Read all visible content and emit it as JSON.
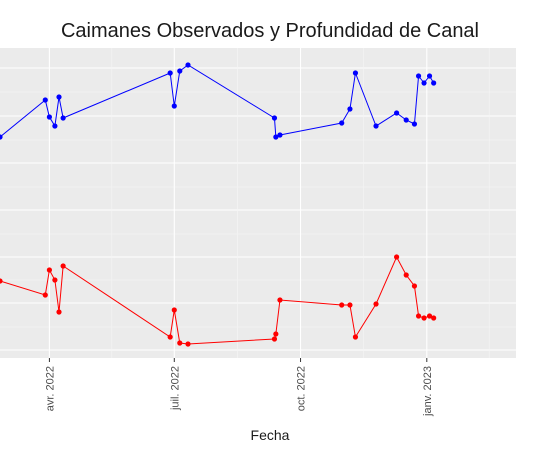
{
  "chart_data": {
    "type": "line",
    "title": "Caimanes Observados y Profundidad de Canal",
    "xlabel": "Fecha",
    "ylabel": "",
    "x_type": "date",
    "xlim": [
      "2022-02-24",
      "2023-03-07"
    ],
    "x_ticks": [
      {
        "date": "2022-04-01",
        "label": "avr. 2022"
      },
      {
        "date": "2022-07-01",
        "label": "juil. 2022"
      },
      {
        "date": "2022-10-01",
        "label": "oct. 2022"
      },
      {
        "date": "2023-01-01",
        "label": "janv. 2023"
      }
    ],
    "grid": true,
    "series": [
      {
        "color": "#0000ff",
        "x": [
          "2022-02-24",
          "2022-03-29",
          "2022-04-01",
          "2022-04-05",
          "2022-04-08",
          "2022-04-11",
          "2022-06-28",
          "2022-07-01",
          "2022-07-05",
          "2022-07-11",
          "2022-09-12",
          "2022-09-13",
          "2022-09-16",
          "2022-10-31",
          "2022-11-06",
          "2022-11-10",
          "2022-11-25",
          "2022-12-10",
          "2022-12-17",
          "2022-12-23",
          "2022-12-26",
          "2022-12-30",
          "2023-01-03",
          "2023-01-06"
        ],
        "y": [
          137,
          100,
          117,
          126,
          97,
          118,
          73,
          106,
          71,
          65,
          118,
          137,
          135,
          123,
          109,
          73,
          126,
          113,
          120,
          124,
          76,
          83,
          76,
          83
        ]
      },
      {
        "color": "#ff0000",
        "x": [
          "2022-02-24",
          "2022-03-29",
          "2022-04-01",
          "2022-04-05",
          "2022-04-08",
          "2022-04-11",
          "2022-06-28",
          "2022-07-01",
          "2022-07-05",
          "2022-07-11",
          "2022-09-12",
          "2022-09-13",
          "2022-09-16",
          "2022-10-31",
          "2022-11-06",
          "2022-11-10",
          "2022-11-25",
          "2022-12-10",
          "2022-12-17",
          "2022-12-23",
          "2022-12-26",
          "2022-12-30",
          "2023-01-03",
          "2023-01-06"
        ],
        "y": [
          281,
          295,
          270,
          280,
          312,
          266,
          337,
          310,
          343,
          344,
          339,
          334,
          300,
          305,
          305,
          337,
          304,
          257,
          275,
          286,
          316,
          318,
          316,
          318
        ]
      }
    ]
  }
}
